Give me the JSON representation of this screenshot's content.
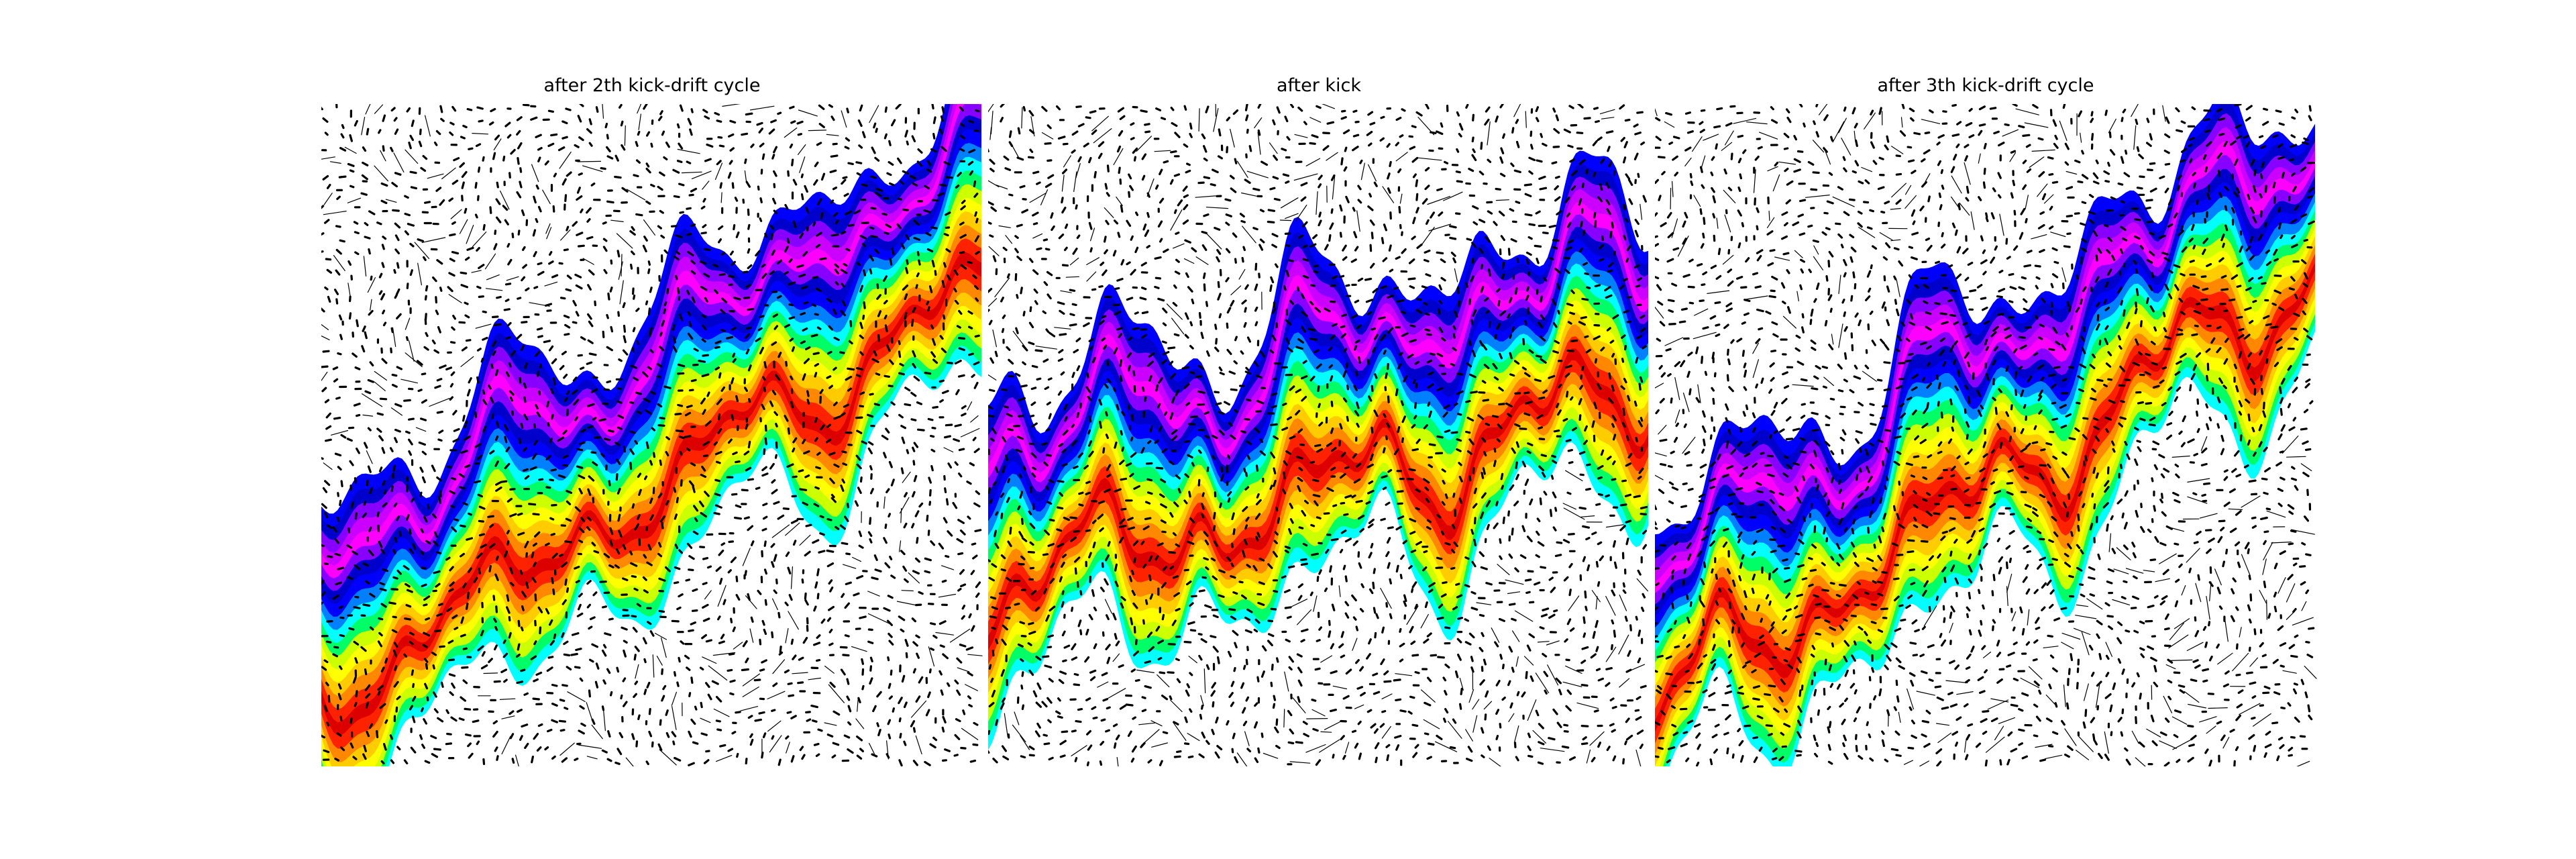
{
  "panels": [
    {
      "title": "after 2th kick-drift cycle",
      "phase": 0.0,
      "tilt": 0.62,
      "wave": 1.0,
      "strands": 60
    },
    {
      "title": "after kick",
      "phase": 1.7,
      "tilt": 0.3,
      "wave": 1.35,
      "strands": 60
    },
    {
      "title": "after 3th kick-drift cycle",
      "phase": 3.1,
      "tilt": 0.66,
      "wave": 1.25,
      "strands": 60
    }
  ],
  "palette": [
    "#00ffff",
    "#00ff66",
    "#ccff00",
    "#ffff00",
    "#ffcc00",
    "#ff8800",
    "#ff2200",
    "#dd0000",
    "#ff2200",
    "#ff8800",
    "#ffcc00",
    "#ffff00",
    "#ccff00",
    "#00ff66",
    "#00ffff",
    "#0080ff",
    "#0000ff",
    "#0000cc",
    "#8800ff",
    "#ff00ff",
    "#cc00ff",
    "#8800ff",
    "#0000cc",
    "#0000ff"
  ],
  "style": {
    "background": "#ffffff",
    "streak_color": "#000000"
  }
}
